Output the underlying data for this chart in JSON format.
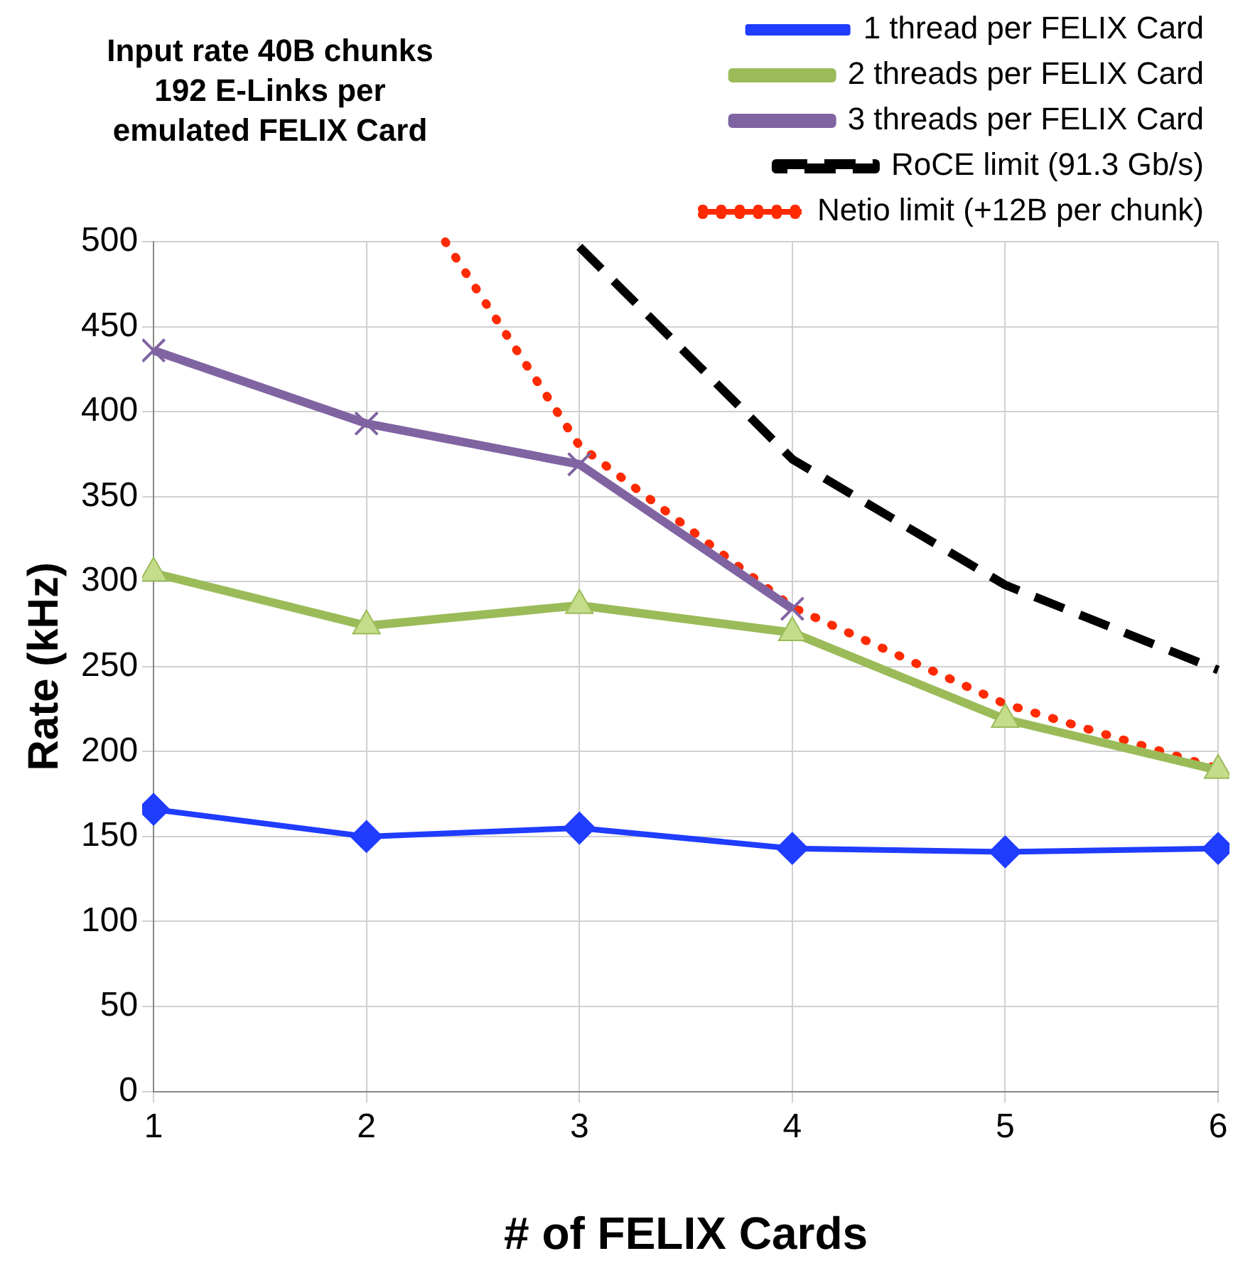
{
  "chart_data": {
    "type": "line",
    "title": "Input rate 40B chunks\n192 E-Links per\nemulated FELIX Card",
    "xlabel": "# of FELIX Cards",
    "ylabel": "Rate (kHz)",
    "x": [
      1,
      2,
      3,
      4,
      5,
      6
    ],
    "series": [
      {
        "name": "1 thread per FELIX Card",
        "color": "#1f3cff",
        "marker": "diamond",
        "values": [
          166,
          150,
          155,
          143,
          141,
          143
        ]
      },
      {
        "name": "2 threads per FELIX Card",
        "color": "#9bbb59",
        "marker": "triangle",
        "values": [
          305,
          274,
          286,
          270,
          219,
          189
        ]
      },
      {
        "name": "3 threads per FELIX Card",
        "color": "#8064a2",
        "marker": "cross",
        "values": [
          436,
          393,
          369,
          284,
          null,
          null
        ]
      },
      {
        "name": "RoCE limit (91.3 Gb/s)",
        "color": "#000000",
        "marker": "none",
        "line_style": "dashed",
        "x": [
          3,
          4,
          5,
          6
        ],
        "values": [
          497,
          372,
          298,
          248
        ]
      },
      {
        "name": "Netio limit (+12B per chunk)",
        "color": "#ff2a00",
        "marker": "none",
        "line_style": "dotted",
        "x": [
          2.37,
          3,
          4,
          5,
          6
        ],
        "values": [
          500,
          380,
          285,
          228,
          190
        ]
      }
    ],
    "xlim": [
      1,
      6
    ],
    "xticks": [
      1,
      2,
      3,
      4,
      5,
      6
    ],
    "ylim": [
      0,
      500
    ],
    "yticks": [
      0,
      50,
      100,
      150,
      200,
      250,
      300,
      350,
      400,
      450,
      500
    ],
    "grid": true,
    "legend": "top right"
  }
}
